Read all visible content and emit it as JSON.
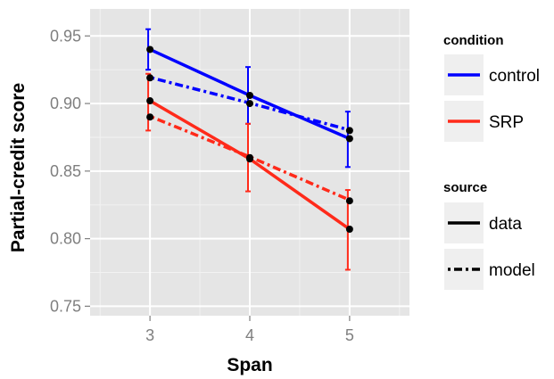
{
  "chart_data": {
    "type": "line",
    "xlabel": "Span",
    "ylabel": "Partial-credit score",
    "x_ticks": [
      "3",
      "4",
      "5"
    ],
    "y_ticks": [
      "0.75",
      "0.80",
      "0.85",
      "0.90",
      "0.95"
    ],
    "xlim": [
      2.4,
      5.6
    ],
    "ylim": [
      0.743,
      0.97
    ],
    "grid": true,
    "legend_placement": "right",
    "legend": {
      "condition": {
        "title": "condition",
        "items": [
          "control",
          "SRP"
        ]
      },
      "source": {
        "title": "source",
        "items": [
          "data",
          "model"
        ]
      }
    },
    "colors": {
      "control": "#0000ff",
      "SRP": "#ff2a1a",
      "panel": "#e5e5e5",
      "grid": "#ffffff",
      "point": "#000000"
    },
    "series": [
      {
        "condition": "control",
        "source": "data",
        "x": [
          3,
          4,
          5
        ],
        "y": [
          0.94,
          0.906,
          0.874
        ],
        "error_low": [
          0.925,
          0.885,
          0.853
        ],
        "error_high": [
          0.955,
          0.927,
          0.894
        ]
      },
      {
        "condition": "SRP",
        "source": "data",
        "x": [
          3,
          4,
          5
        ],
        "y": [
          0.902,
          0.859,
          0.807
        ],
        "error_low": [
          0.88,
          0.835,
          0.777
        ],
        "error_high": [
          0.922,
          0.885,
          0.836
        ]
      },
      {
        "condition": "control",
        "source": "model",
        "x": [
          3,
          4,
          5
        ],
        "y": [
          0.919,
          0.9,
          0.88
        ]
      },
      {
        "condition": "SRP",
        "source": "model",
        "x": [
          3,
          4,
          5
        ],
        "y": [
          0.89,
          0.86,
          0.828
        ]
      }
    ]
  }
}
